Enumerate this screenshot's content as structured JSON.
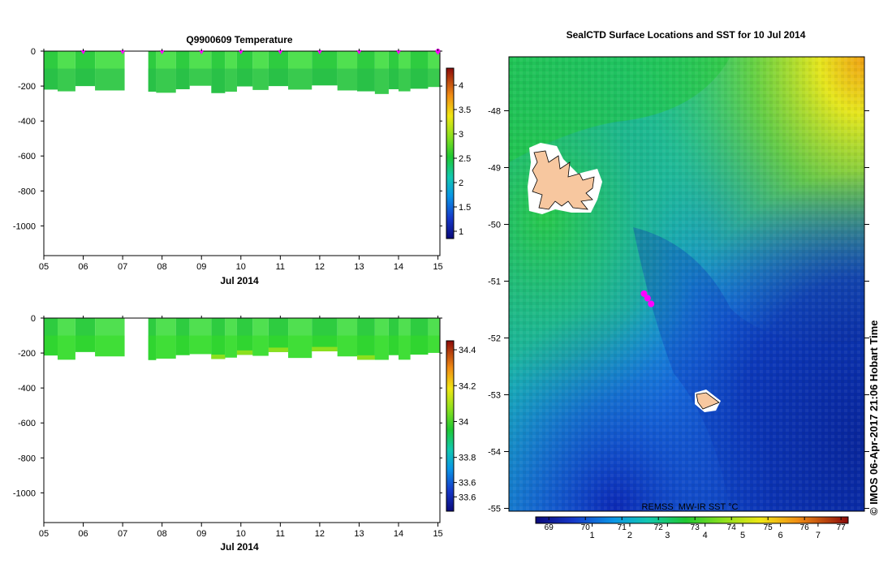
{
  "colors": {
    "profile_green": "#2ecc40",
    "profile_green_light": "#50e050",
    "profile_green_bright": "#33dd22",
    "marker": "#ff00ff",
    "island_fill": "#f7c79f"
  },
  "chart_data": [
    {
      "type": "heatmap",
      "title": "Q9900609  Temperature",
      "xlabel": "Jul 2014",
      "ylabel": "",
      "x_ticks": [
        "05",
        "06",
        "07",
        "08",
        "09",
        "10",
        "11",
        "12",
        "13",
        "14",
        "15"
      ],
      "y_ticks": [
        "0",
        "-200",
        "-400",
        "-600",
        "-800",
        "-1000"
      ],
      "ylim": [
        -1170,
        0
      ],
      "xlim": [
        5,
        15.05
      ],
      "profile_bottoms": [
        {
          "from": 5.0,
          "to": 5.35,
          "depth": -220
        },
        {
          "from": 5.35,
          "to": 5.8,
          "depth": -230
        },
        {
          "from": 5.8,
          "to": 6.3,
          "depth": -200
        },
        {
          "from": 6.3,
          "to": 7.05,
          "depth": -225
        },
        {
          "from": 7.65,
          "to": 7.85,
          "depth": -232
        },
        {
          "from": 7.85,
          "to": 8.35,
          "depth": -238
        },
        {
          "from": 8.35,
          "to": 8.7,
          "depth": -218
        },
        {
          "from": 8.7,
          "to": 9.25,
          "depth": -198
        },
        {
          "from": 9.25,
          "to": 9.6,
          "depth": -240
        },
        {
          "from": 9.6,
          "to": 9.9,
          "depth": -232
        },
        {
          "from": 9.9,
          "to": 10.3,
          "depth": -202
        },
        {
          "from": 10.3,
          "to": 10.7,
          "depth": -222
        },
        {
          "from": 10.7,
          "to": 11.2,
          "depth": -200
        },
        {
          "from": 11.2,
          "to": 11.8,
          "depth": -220
        },
        {
          "from": 11.8,
          "to": 12.45,
          "depth": -196
        },
        {
          "from": 12.45,
          "to": 12.95,
          "depth": -225
        },
        {
          "from": 12.95,
          "to": 13.4,
          "depth": -230
        },
        {
          "from": 13.4,
          "to": 13.75,
          "depth": -245
        },
        {
          "from": 13.75,
          "to": 14.0,
          "depth": -218
        },
        {
          "from": 14.0,
          "to": 14.3,
          "depth": -230
        },
        {
          "from": 14.3,
          "to": 14.75,
          "depth": -215
        },
        {
          "from": 14.75,
          "to": 15.05,
          "depth": -205
        }
      ],
      "gap": [
        7.05,
        7.65
      ],
      "markers_x": [
        6,
        7,
        8,
        9,
        10,
        11,
        12,
        13,
        14,
        15
      ],
      "colorbar_ticks": [
        "1",
        "1.5",
        "2",
        "2.5",
        "3",
        "3.5",
        "4"
      ],
      "colorbar_range": [
        0.85,
        4.35
      ]
    },
    {
      "type": "heatmap",
      "title": "",
      "xlabel": "Jul 2014",
      "ylabel": "",
      "x_ticks": [
        "05",
        "06",
        "07",
        "08",
        "09",
        "10",
        "11",
        "12",
        "13",
        "14",
        "15"
      ],
      "y_ticks": [
        "0",
        "-200",
        "-400",
        "-600",
        "-800",
        "-1000"
      ],
      "ylim": [
        -1170,
        0
      ],
      "xlim": [
        5,
        15.05
      ],
      "gap": [
        7.05,
        7.65
      ],
      "colorbar_ticks": [
        "33.6",
        "33.6",
        "33.8",
        "34",
        "34.2",
        "34.4"
      ],
      "colorbar_range": [
        33.5,
        34.45
      ]
    },
    {
      "type": "heatmap",
      "title": "SealCTD Surface Locations and SST for 10 Jul 2014",
      "xlabel": "",
      "ylabel": "",
      "y_ticks": [
        "-48",
        "-49",
        "-50",
        "-51",
        "-52",
        "-53",
        "-54",
        "-55"
      ],
      "ylim": [
        -55.05,
        -47.05
      ],
      "colorbar_label": "REMSS_MW-IR SST °C",
      "colorbar_top_ticks": [
        "69",
        "70",
        "71",
        "72",
        "73",
        "74",
        "75",
        "76",
        "77"
      ],
      "colorbar_bottom_ticks": [
        "1",
        "2",
        "3",
        "4",
        "5",
        "6",
        "7"
      ],
      "colorbar_range": [
        -0.5,
        7.8
      ],
      "seal_locations": [
        {
          "lon_frac": 0.38,
          "lat": -51.22
        },
        {
          "lon_frac": 0.39,
          "lat": -51.3
        },
        {
          "lon_frac": 0.4,
          "lat": -51.4
        }
      ]
    }
  ],
  "watermark": "© IMOS 06-Apr-2017 21:06 Hobart Time"
}
